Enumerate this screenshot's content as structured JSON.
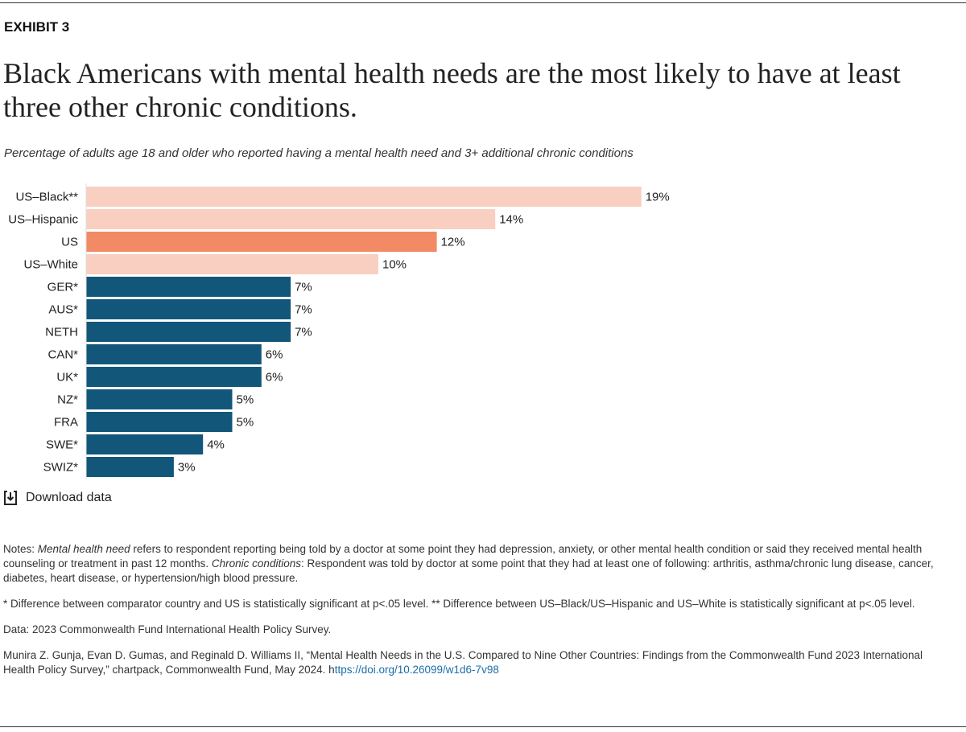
{
  "exhibit_label": "EXHIBIT 3",
  "title": "Black Americans with mental health needs are the most likely to have at least three other chronic conditions.",
  "subtitle": "Percentage of adults age 18 and older who reported having a mental health need and 3+ additional chronic conditions",
  "download_label": "Download data",
  "download_icon": "download-icon",
  "colors": {
    "us_subgroup": "#f8cfc0",
    "us": "#f28a65",
    "comparator": "#12567a"
  },
  "chart_data": {
    "type": "bar",
    "orientation": "horizontal",
    "categories": [
      "US–Black**",
      "US–Hispanic",
      "US",
      "US–White",
      "GER*",
      "AUS*",
      "NETH",
      "CAN*",
      "UK*",
      "NZ*",
      "FRA",
      "SWE*",
      "SWIZ*"
    ],
    "values": [
      19,
      14,
      12,
      10,
      7,
      7,
      7,
      6,
      6,
      5,
      5,
      4,
      3
    ],
    "data_labels": [
      "19%",
      "14%",
      "12%",
      "10%",
      "7%",
      "7%",
      "7%",
      "6%",
      "6%",
      "5%",
      "5%",
      "4%",
      "3%"
    ],
    "groups": [
      "us_subgroup",
      "us_subgroup",
      "us",
      "us_subgroup",
      "comparator",
      "comparator",
      "comparator",
      "comparator",
      "comparator",
      "comparator",
      "comparator",
      "comparator",
      "comparator"
    ],
    "xlim": [
      0,
      20
    ],
    "grid": false
  },
  "notes": {
    "n1_prefix": "Notes: ",
    "n1_term1": "Mental health need",
    "n1_mid": " refers to respondent reporting being told by a doctor at some point they had depression, anxiety, or other mental health condition or said they received mental health counseling or treatment in past 12 months. ",
    "n1_term2": "Chronic conditions",
    "n1_end": ": Respondent was told by doctor at some point that they had at least one of following: arthritis, asthma/chronic lung disease, cancer, diabetes, heart disease, or hypertension/high blood pressure.",
    "n2": "* Difference between comparator country and US is statistically significant at p<.05 level. ** Difference between US–Black/US–Hispanic and US–White is statistically significant at p<.05 level.",
    "data_source": "Data: 2023 Commonwealth Fund International Health Policy Survey.",
    "citation": "Munira Z. Gunja, Evan D. Gumas, and Reginald D. Williams II, “Mental Health Needs in the U.S. Compared to Nine Other Countries: Findings from the Commonwealth Fund 2023 International Health Policy Survey,” chartpack, Commonwealth Fund, May 2024. h",
    "citation_link": "ttps://doi.org/10.26099/w1d6-7v98"
  }
}
